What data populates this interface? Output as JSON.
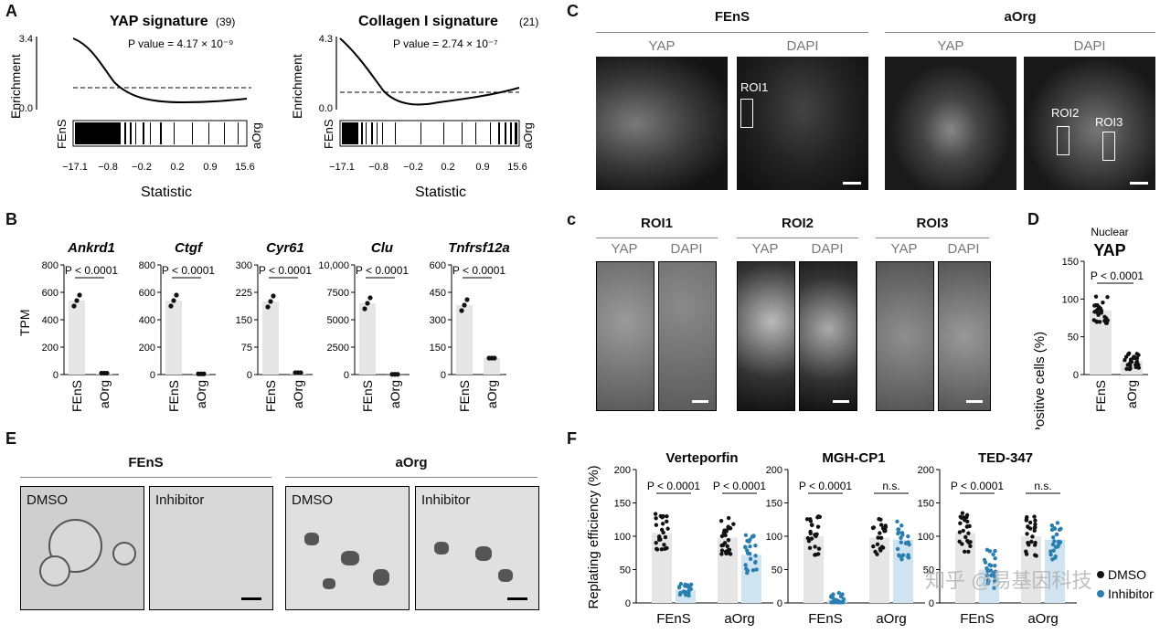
{
  "panels": {
    "A": {
      "label": "A",
      "gsea": [
        {
          "title": "YAP signature",
          "count": "(39)",
          "pvalue": "P value = 4.17 × 10⁻⁹",
          "ymax": "3.4",
          "ymin": "0.0",
          "left_label": "FEnS",
          "right_label": "aOrg",
          "xticks": [
            "−17.1",
            "−0.8",
            "−0.2",
            "0.2",
            "0.9",
            "15.6"
          ],
          "xlabel": "Statistic",
          "ylabel": "Enrichment"
        },
        {
          "title": "Collagen I signature",
          "count": "(21)",
          "pvalue": "P value = 2.74 × 10⁻⁷",
          "ymax": "4.3",
          "ymin": "0.0",
          "left_label": "FEnS",
          "right_label": "aOrg",
          "xticks": [
            "−17.1",
            "−0.8",
            "−0.2",
            "0.2",
            "0.9",
            "15.6"
          ],
          "xlabel": "Statistic",
          "ylabel": "Enrichment"
        }
      ]
    },
    "B": {
      "label": "B",
      "ylabel": "TPM",
      "pval": "P < 0.0001",
      "categories": [
        "FEnS",
        "aOrg"
      ],
      "genes": [
        {
          "name": "Ankrd1",
          "yticks": [
            "0",
            "200",
            "400",
            "600",
            "800"
          ],
          "ymax": 800,
          "values": [
            540,
            10
          ]
        },
        {
          "name": "Ctgf",
          "yticks": [
            "0",
            "200",
            "400",
            "600",
            "800"
          ],
          "ymax": 800,
          "values": [
            540,
            5
          ]
        },
        {
          "name": "Cyr61",
          "yticks": [
            "0",
            "75",
            "150",
            "225",
            "300"
          ],
          "ymax": 300,
          "values": [
            200,
            5
          ]
        },
        {
          "name": "Clu",
          "yticks": [
            "0",
            "2500",
            "5000",
            "7500",
            "10,000"
          ],
          "ymax": 10000,
          "values": [
            6500,
            20
          ]
        },
        {
          "name": "Tnfrsf12a",
          "yticks": [
            "0",
            "150",
            "300",
            "450",
            "600"
          ],
          "ymax": 600,
          "values": [
            380,
            90
          ]
        }
      ]
    },
    "C": {
      "label": "C",
      "groups": [
        "FEnS",
        "aOrg"
      ],
      "channels": [
        "YAP",
        "DAPI",
        "YAP",
        "DAPI"
      ],
      "rois": [
        "ROI1",
        "ROI2",
        "ROI3"
      ]
    },
    "c": {
      "label": "c",
      "rois": [
        "ROI1",
        "ROI2",
        "ROI3"
      ],
      "channels": [
        "YAP",
        "DAPI"
      ]
    },
    "D": {
      "label": "D",
      "title_top": "Nuclear",
      "title_main": "YAP",
      "ylabel": "Positive cells (%)",
      "yticks": [
        "0",
        "50",
        "100",
        "150"
      ],
      "ymax": 150,
      "categories": [
        "FEnS",
        "aOrg"
      ],
      "values": [
        85,
        18
      ],
      "pval": "P < 0.0001"
    },
    "E": {
      "label": "E",
      "groups": [
        "FEnS",
        "aOrg"
      ],
      "conditions": [
        "DMSO",
        "Inhibitor",
        "DMSO",
        "Inhibitor"
      ]
    },
    "F": {
      "label": "F",
      "ylabel": "Replating efficiency (%)",
      "yticks": [
        "0",
        "50",
        "100",
        "150",
        "200"
      ],
      "ymax": 200,
      "categories": [
        "FEnS",
        "aOrg"
      ],
      "legend": [
        "DMSO",
        "Inhibitor"
      ],
      "watermark": "知乎 @易基因科技",
      "drugs": [
        {
          "name": "Verteporfin",
          "values": [
            [
              105,
              20
            ],
            [
              98,
              72
            ]
          ],
          "pvals": [
            "P < 0.0001",
            "P < 0.0001"
          ]
        },
        {
          "name": "MGH-CP1",
          "values": [
            [
              100,
              5
            ],
            [
              98,
              95
            ]
          ],
          "pvals": [
            "P < 0.0001",
            "n.s."
          ]
        },
        {
          "name": "TED-347",
          "values": [
            [
              105,
              50
            ],
            [
              100,
              95
            ]
          ],
          "pvals": [
            "P < 0.0001",
            "n.s."
          ]
        }
      ]
    }
  },
  "colors": {
    "dmso": "#111111",
    "inhibitor": "#2a7fb0",
    "bar": "#e6e6e6",
    "inhibitor_bar": "#cfe3f1"
  },
  "chart_data": [
    {
      "type": "bar",
      "title": "Ankrd1",
      "ylabel": "TPM",
      "categories": [
        "FEnS",
        "aOrg"
      ],
      "values": [
        540,
        10
      ],
      "ylim": [
        0,
        800
      ]
    },
    {
      "type": "bar",
      "title": "Ctgf",
      "ylabel": "TPM",
      "categories": [
        "FEnS",
        "aOrg"
      ],
      "values": [
        540,
        5
      ],
      "ylim": [
        0,
        800
      ]
    },
    {
      "type": "bar",
      "title": "Cyr61",
      "ylabel": "TPM",
      "categories": [
        "FEnS",
        "aOrg"
      ],
      "values": [
        200,
        5
      ],
      "ylim": [
        0,
        300
      ]
    },
    {
      "type": "bar",
      "title": "Clu",
      "ylabel": "TPM",
      "categories": [
        "FEnS",
        "aOrg"
      ],
      "values": [
        6500,
        20
      ],
      "ylim": [
        0,
        10000
      ]
    },
    {
      "type": "bar",
      "title": "Tnfrsf12a",
      "ylabel": "TPM",
      "categories": [
        "FEnS",
        "aOrg"
      ],
      "values": [
        380,
        90
      ],
      "ylim": [
        0,
        600
      ]
    },
    {
      "type": "bar",
      "title": "Nuclear YAP",
      "ylabel": "Positive cells (%)",
      "categories": [
        "FEnS",
        "aOrg"
      ],
      "values": [
        85,
        18
      ],
      "ylim": [
        0,
        150
      ]
    },
    {
      "type": "bar",
      "title": "Verteporfin",
      "ylabel": "Replating efficiency (%)",
      "categories": [
        "FEnS",
        "aOrg"
      ],
      "series": [
        {
          "name": "DMSO",
          "values": [
            105,
            98
          ]
        },
        {
          "name": "Inhibitor",
          "values": [
            20,
            72
          ]
        }
      ],
      "ylim": [
        0,
        200
      ]
    },
    {
      "type": "bar",
      "title": "MGH-CP1",
      "ylabel": "Replating efficiency (%)",
      "categories": [
        "FEnS",
        "aOrg"
      ],
      "series": [
        {
          "name": "DMSO",
          "values": [
            100,
            98
          ]
        },
        {
          "name": "Inhibitor",
          "values": [
            5,
            95
          ]
        }
      ],
      "ylim": [
        0,
        200
      ]
    },
    {
      "type": "bar",
      "title": "TED-347",
      "ylabel": "Replating efficiency (%)",
      "categories": [
        "FEnS",
        "aOrg"
      ],
      "series": [
        {
          "name": "DMSO",
          "values": [
            105,
            100
          ]
        },
        {
          "name": "Inhibitor",
          "values": [
            50,
            95
          ]
        }
      ],
      "ylim": [
        0,
        200
      ]
    }
  ]
}
